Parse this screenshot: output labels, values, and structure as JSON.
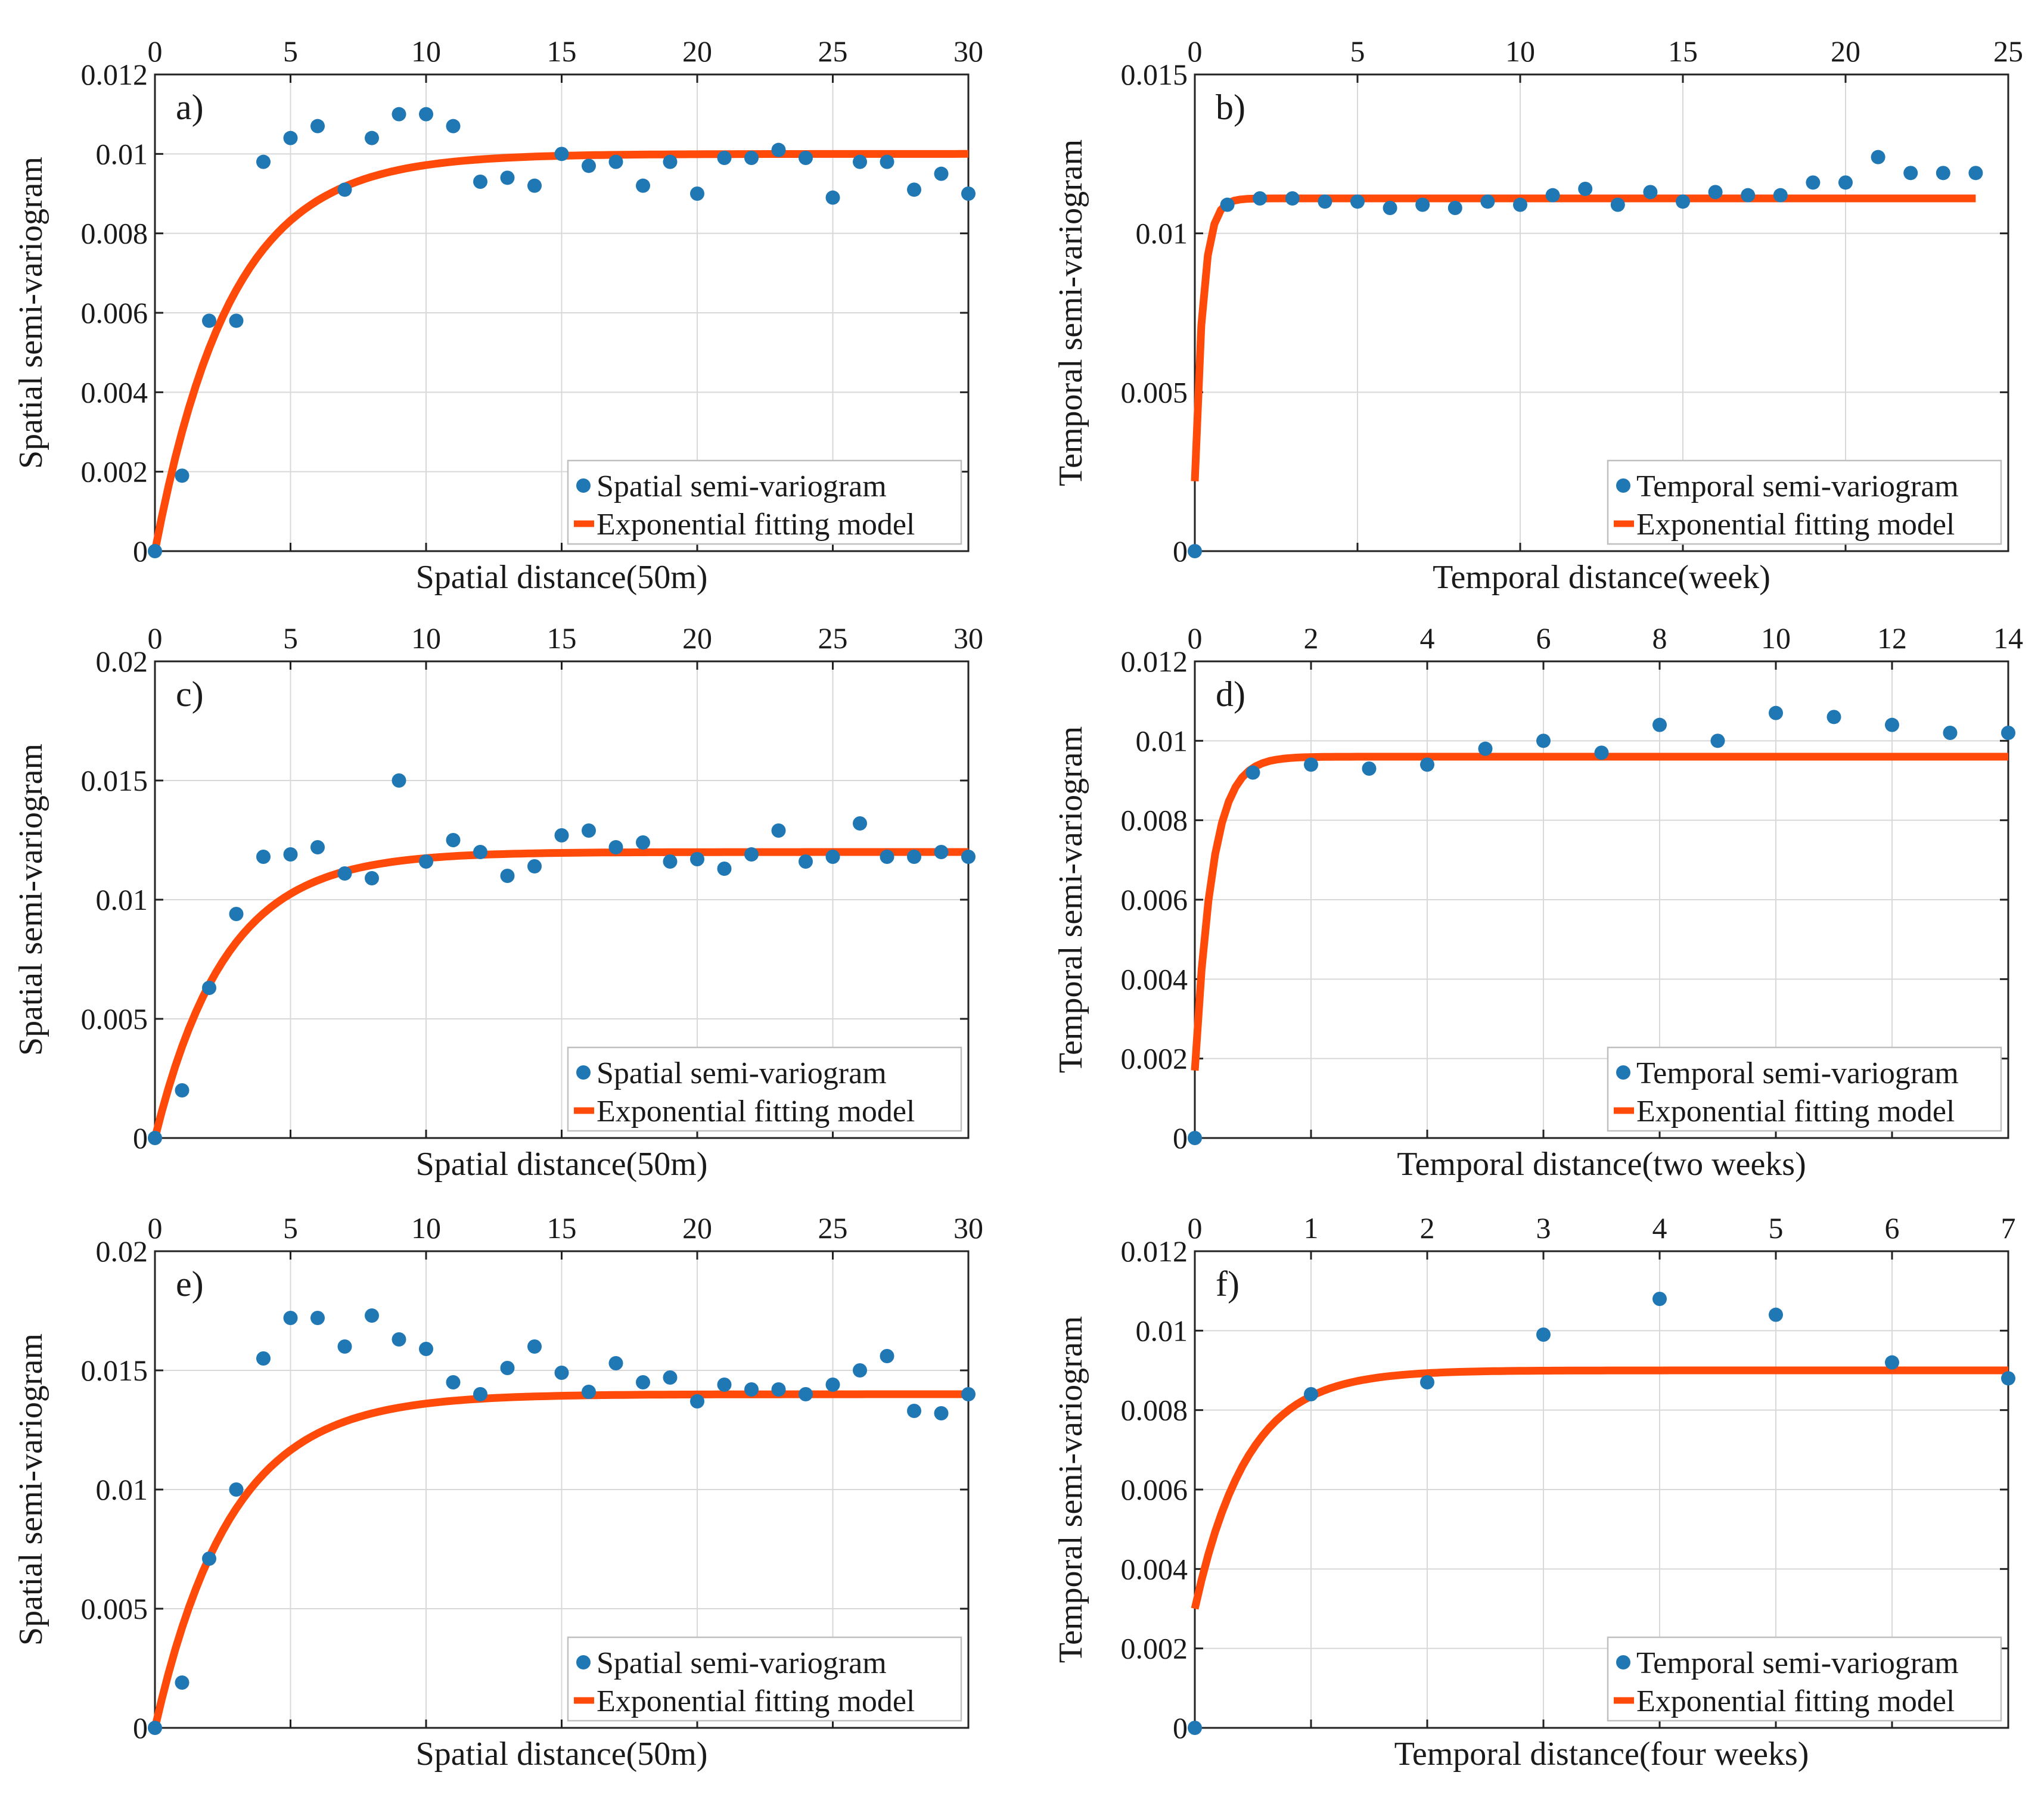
{
  "colors": {
    "points": "#1f77b4",
    "fit": "#ff4a0a",
    "frame": "#222222"
  },
  "chart_data": [
    {
      "panel": "a)",
      "type": "scatter",
      "xlabel": "Spatial distance(50m)",
      "ylabel": "Spatial semi-variogram",
      "xlim": [
        0,
        30
      ],
      "ylim": [
        0,
        0.012
      ],
      "xticks": [
        0,
        5,
        10,
        15,
        20,
        25,
        30
      ],
      "yticks": [
        0,
        0.002,
        0.004,
        0.006,
        0.008,
        0.01,
        0.012
      ],
      "ytick_labels": [
        "0",
        "0.002",
        "0.004",
        "0.006",
        "0.008",
        "0.01",
        "0.012"
      ],
      "grid": true,
      "legend": [
        "Spatial semi-variogram",
        "Exponential fitting model"
      ],
      "points": {
        "x": [
          0,
          1,
          2,
          3,
          4,
          5,
          6,
          7,
          8,
          9,
          10,
          11,
          12,
          13,
          14,
          15,
          16,
          17,
          18,
          19,
          20,
          21,
          22,
          23,
          24,
          25,
          26,
          27,
          28,
          29,
          30
        ],
        "y": [
          0,
          0.0019,
          0.0058,
          0.0058,
          0.0098,
          0.0104,
          0.0107,
          0.0091,
          0.0104,
          0.011,
          0.011,
          0.0107,
          0.0093,
          0.0094,
          0.0092,
          0.01,
          0.0097,
          0.0098,
          0.0092,
          0.0098,
          0.009,
          0.0099,
          0.0099,
          0.0101,
          0.0099,
          0.0089,
          0.0098,
          0.0098,
          0.0091,
          0.0095,
          0.009
        ]
      },
      "fit": {
        "nugget": 0,
        "sill": 0.01,
        "range": 2.8,
        "x_start": 0,
        "x_end": 30
      }
    },
    {
      "panel": "b)",
      "type": "scatter",
      "xlabel": "Temporal distance(week)",
      "ylabel": "Temporal semi-variogram",
      "xlim": [
        0,
        25
      ],
      "ylim": [
        0,
        0.015
      ],
      "xticks": [
        0,
        5,
        10,
        15,
        20,
        25
      ],
      "yticks": [
        0,
        0.005,
        0.01,
        0.015
      ],
      "ytick_labels": [
        "0",
        "0.005",
        "0.01",
        "0.015"
      ],
      "grid": true,
      "legend": [
        "Temporal semi-variogram",
        "Exponential fitting model"
      ],
      "points": {
        "x": [
          0,
          1,
          2,
          3,
          4,
          5,
          6,
          7,
          8,
          9,
          10,
          11,
          12,
          13,
          14,
          15,
          16,
          17,
          18,
          19,
          20,
          21,
          22,
          23,
          24
        ],
        "y": [
          0,
          0.0109,
          0.0111,
          0.0111,
          0.011,
          0.011,
          0.0108,
          0.0109,
          0.0108,
          0.011,
          0.0109,
          0.0112,
          0.0114,
          0.0109,
          0.0113,
          0.011,
          0.0113,
          0.0112,
          0.0112,
          0.0116,
          0.0116,
          0.0124,
          0.0119,
          0.0119,
          0.0119
        ]
      },
      "fit": {
        "nugget": 0.0022,
        "sill": 0.0111,
        "range": 0.25,
        "x_start": 0,
        "x_end": 24
      }
    },
    {
      "panel": "c)",
      "type": "scatter",
      "xlabel": "Spatial distance(50m)",
      "ylabel": "Spatial semi-variogram",
      "xlim": [
        0,
        30
      ],
      "ylim": [
        0,
        0.02
      ],
      "xticks": [
        0,
        5,
        10,
        15,
        20,
        25,
        30
      ],
      "yticks": [
        0,
        0.005,
        0.01,
        0.015,
        0.02
      ],
      "ytick_labels": [
        "0",
        "0.005",
        "0.01",
        "0.015",
        "0.02"
      ],
      "grid": true,
      "legend": [
        "Spatial semi-variogram",
        "Exponential fitting model"
      ],
      "points": {
        "x": [
          0,
          1,
          2,
          3,
          4,
          5,
          6,
          7,
          8,
          9,
          10,
          11,
          12,
          13,
          14,
          15,
          16,
          17,
          18,
          19,
          20,
          21,
          22,
          23,
          24,
          25,
          26,
          27,
          28,
          29,
          30
        ],
        "y": [
          0,
          0.002,
          0.0063,
          0.0094,
          0.0118,
          0.0119,
          0.0122,
          0.0111,
          0.0109,
          0.015,
          0.0116,
          0.0125,
          0.012,
          0.011,
          0.0114,
          0.0127,
          0.0129,
          0.0122,
          0.0124,
          0.0116,
          0.0117,
          0.0113,
          0.0119,
          0.0129,
          0.0116,
          0.0118,
          0.0132,
          0.0118,
          0.0118,
          0.012,
          0.0118
        ]
      },
      "fit": {
        "nugget": 0,
        "sill": 0.012,
        "range": 2.6,
        "x_start": 0,
        "x_end": 30
      }
    },
    {
      "panel": "d)",
      "type": "scatter",
      "xlabel": "Temporal distance(two weeks)",
      "ylabel": "Temporal semi-variogram",
      "xlim": [
        0,
        14
      ],
      "ylim": [
        0,
        0.012
      ],
      "xticks": [
        0,
        2,
        4,
        6,
        8,
        10,
        12,
        14
      ],
      "yticks": [
        0,
        0.002,
        0.004,
        0.006,
        0.008,
        0.01,
        0.012
      ],
      "ytick_labels": [
        "0",
        "0.002",
        "0.004",
        "0.006",
        "0.008",
        "0.01",
        "0.012"
      ],
      "grid": true,
      "legend": [
        "Temporal semi-variogram",
        "Exponential fitting model"
      ],
      "points": {
        "x": [
          0,
          1,
          2,
          3,
          4,
          5,
          6,
          7,
          8,
          9,
          10,
          11,
          12,
          13,
          14
        ],
        "y": [
          0,
          0.0092,
          0.0094,
          0.0093,
          0.0094,
          0.0098,
          0.01,
          0.0097,
          0.0104,
          0.01,
          0.0107,
          0.0106,
          0.0104,
          0.0102,
          0.0102
        ]
      },
      "fit": {
        "nugget": 0.0017,
        "sill": 0.0096,
        "range": 0.3,
        "x_start": 0,
        "x_end": 14
      }
    },
    {
      "panel": "e)",
      "type": "scatter",
      "xlabel": "Spatial distance(50m)",
      "ylabel": "Spatial semi-variogram",
      "xlim": [
        0,
        30
      ],
      "ylim": [
        0,
        0.02
      ],
      "xticks": [
        0,
        5,
        10,
        15,
        20,
        25,
        30
      ],
      "yticks": [
        0,
        0.005,
        0.01,
        0.015,
        0.02
      ],
      "ytick_labels": [
        "0",
        "0.005",
        "0.01",
        "0.015",
        "0.02"
      ],
      "grid": true,
      "legend": [
        "Spatial semi-variogram",
        "Exponential fitting model"
      ],
      "points": {
        "x": [
          0,
          1,
          2,
          3,
          4,
          5,
          6,
          7,
          8,
          9,
          10,
          11,
          12,
          13,
          14,
          15,
          16,
          17,
          18,
          19,
          20,
          21,
          22,
          23,
          24,
          25,
          26,
          27,
          28,
          29,
          30
        ],
        "y": [
          0,
          0.0019,
          0.0071,
          0.01,
          0.0155,
          0.0172,
          0.0172,
          0.016,
          0.0173,
          0.0163,
          0.0159,
          0.0145,
          0.014,
          0.0151,
          0.016,
          0.0149,
          0.0141,
          0.0153,
          0.0145,
          0.0147,
          0.0137,
          0.0144,
          0.0142,
          0.0142,
          0.014,
          0.0144,
          0.015,
          0.0156,
          0.0133,
          0.0132,
          0.014
        ]
      },
      "fit": {
        "nugget": 0,
        "sill": 0.014,
        "range": 2.8,
        "x_start": 0,
        "x_end": 30
      }
    },
    {
      "panel": "f)",
      "type": "scatter",
      "xlabel": "Temporal distance(four weeks)",
      "ylabel": "Temporal semi-variogram",
      "xlim": [
        0,
        7
      ],
      "ylim": [
        0,
        0.012
      ],
      "xticks": [
        0,
        1,
        2,
        3,
        4,
        5,
        6,
        7
      ],
      "yticks": [
        0,
        0.002,
        0.004,
        0.006,
        0.008,
        0.01,
        0.012
      ],
      "ytick_labels": [
        "0",
        "0.002",
        "0.004",
        "0.006",
        "0.008",
        "0.01",
        "0.012"
      ],
      "grid": true,
      "legend": [
        "Temporal semi-variogram",
        "Exponential fitting model"
      ],
      "points": {
        "x": [
          0,
          1,
          2,
          3,
          4,
          5,
          6,
          7
        ],
        "y": [
          0,
          0.0084,
          0.0087,
          0.0099,
          0.0108,
          0.0104,
          0.0092,
          0.0088
        ]
      },
      "fit": {
        "nugget": 0.003,
        "sill": 0.009,
        "range": 0.45,
        "x_start": 0,
        "x_end": 7
      }
    }
  ]
}
